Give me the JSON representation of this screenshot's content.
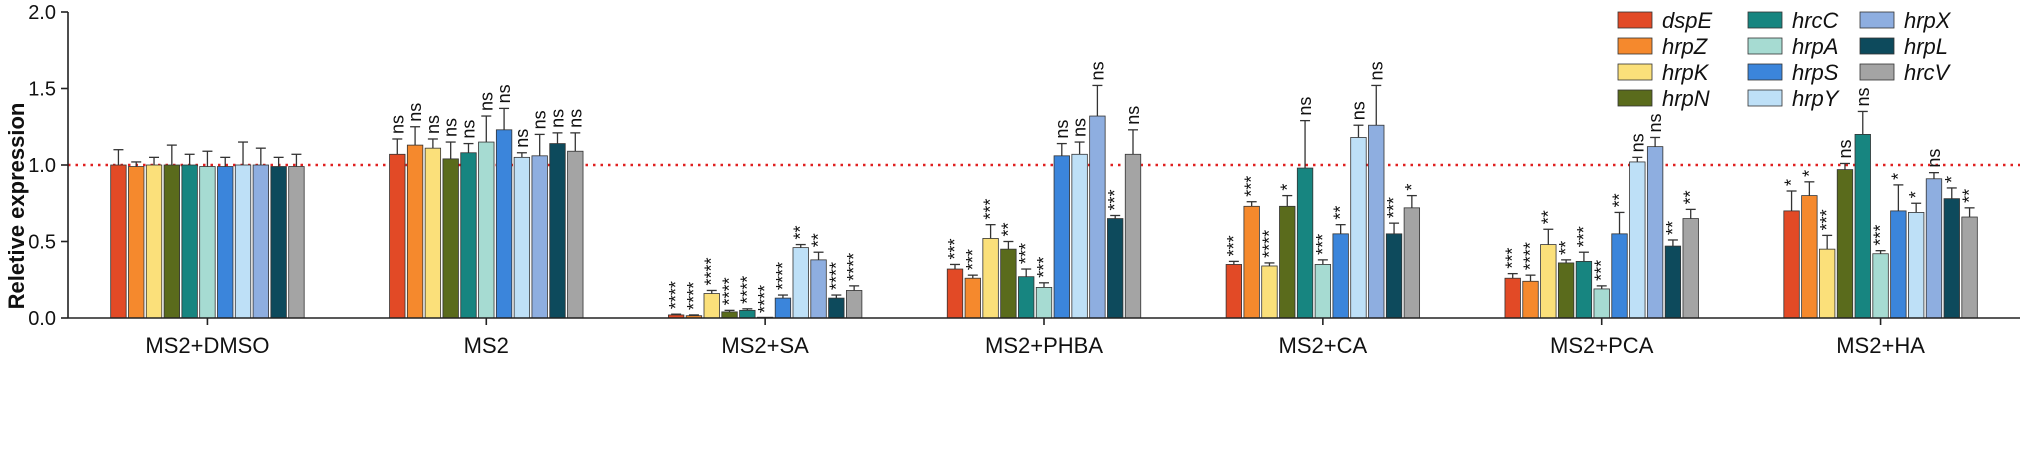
{
  "chart_data": {
    "type": "bar",
    "title": "",
    "xlabel": "",
    "ylabel": "Reletive expression",
    "ylim": [
      0,
      2.0
    ],
    "yticks": [
      "0.0",
      "0.5",
      "1.0",
      "1.5",
      "2.0"
    ],
    "reference_line": 1.0,
    "legend_position": "top-right",
    "categories": [
      "MS2+DMSO",
      "MS2",
      "MS2+SA",
      "MS2+PHBA",
      "MS2+CA",
      "MS2+PCA",
      "MS2+HA"
    ],
    "series": [
      {
        "name": "dspE",
        "color": "#e24a26",
        "values": [
          1.0,
          1.07,
          0.02,
          0.32,
          0.35,
          0.26,
          0.7
        ],
        "errors": [
          0.1,
          0.1,
          0.005,
          0.03,
          0.02,
          0.03,
          0.13
        ],
        "sig": [
          "",
          "ns",
          "****",
          "***",
          "***",
          "***",
          "*"
        ]
      },
      {
        "name": "hrpZ",
        "color": "#f5892d",
        "values": [
          0.99,
          1.13,
          0.015,
          0.26,
          0.73,
          0.24,
          0.8
        ],
        "errors": [
          0.03,
          0.12,
          0.005,
          0.02,
          0.03,
          0.04,
          0.09
        ],
        "sig": [
          "",
          "ns",
          "****",
          "***",
          "***",
          "****",
          "*"
        ]
      },
      {
        "name": "hrpK",
        "color": "#fbe07a",
        "values": [
          1.0,
          1.11,
          0.16,
          0.52,
          0.34,
          0.48,
          0.45
        ],
        "errors": [
          0.05,
          0.06,
          0.02,
          0.09,
          0.02,
          0.1,
          0.09
        ],
        "sig": [
          "",
          "ns",
          "****",
          "***",
          "****",
          "**",
          "***"
        ]
      },
      {
        "name": "hrpN",
        "color": "#5a6b1c",
        "values": [
          1.0,
          1.04,
          0.04,
          0.45,
          0.73,
          0.36,
          0.97
        ],
        "errors": [
          0.13,
          0.11,
          0.01,
          0.05,
          0.07,
          0.02,
          0.04
        ],
        "sig": [
          "",
          "ns",
          "****",
          "**",
          "*",
          "**",
          "ns"
        ]
      },
      {
        "name": "hrcC",
        "color": "#178580",
        "values": [
          1.0,
          1.08,
          0.05,
          0.27,
          0.98,
          0.37,
          1.2
        ],
        "errors": [
          0.07,
          0.06,
          0.01,
          0.05,
          0.31,
          0.06,
          0.15
        ],
        "sig": [
          "",
          "ns",
          "****",
          "***",
          "ns",
          "***",
          "ns"
        ]
      },
      {
        "name": "hrpA",
        "color": "#a6dbd2",
        "values": [
          0.99,
          1.15,
          0.0,
          0.2,
          0.35,
          0.19,
          0.42
        ],
        "errors": [
          0.1,
          0.17,
          0.0,
          0.03,
          0.03,
          0.02,
          0.02
        ],
        "sig": [
          "",
          "ns",
          "****",
          "***",
          "***",
          "***",
          "***"
        ]
      },
      {
        "name": "hrpS",
        "color": "#3b85db",
        "values": [
          0.99,
          1.23,
          0.13,
          1.06,
          0.55,
          0.55,
          0.7
        ],
        "errors": [
          0.06,
          0.14,
          0.02,
          0.08,
          0.06,
          0.14,
          0.17
        ],
        "sig": [
          "",
          "ns",
          "****",
          "ns",
          "**",
          "**",
          "*"
        ]
      },
      {
        "name": "hrpY",
        "color": "#bee0f7",
        "values": [
          1.0,
          1.05,
          0.46,
          1.07,
          1.18,
          1.02,
          0.69
        ],
        "errors": [
          0.15,
          0.03,
          0.02,
          0.08,
          0.08,
          0.03,
          0.06
        ],
        "sig": [
          "",
          "ns",
          "**",
          "ns",
          "ns",
          "ns",
          "*"
        ]
      },
      {
        "name": "hrpX",
        "color": "#8eaee0",
        "values": [
          1.0,
          1.06,
          0.38,
          1.32,
          1.26,
          1.12,
          0.91
        ],
        "errors": [
          0.11,
          0.14,
          0.05,
          0.2,
          0.26,
          0.06,
          0.04
        ],
        "sig": [
          "",
          "ns",
          "**",
          "ns",
          "ns",
          "ns",
          "ns"
        ]
      },
      {
        "name": "hrpL",
        "color": "#0d4a5c",
        "values": [
          0.99,
          1.14,
          0.13,
          0.65,
          0.55,
          0.47,
          0.78
        ],
        "errors": [
          0.06,
          0.07,
          0.02,
          0.02,
          0.07,
          0.04,
          0.07
        ],
        "sig": [
          "",
          "ns",
          "****",
          "***",
          "***",
          "**",
          "*"
        ]
      },
      {
        "name": "hrcV",
        "color": "#a4a4a4",
        "values": [
          0.99,
          1.09,
          0.18,
          1.07,
          0.72,
          0.65,
          0.66
        ],
        "errors": [
          0.08,
          0.12,
          0.03,
          0.16,
          0.08,
          0.06,
          0.06
        ],
        "sig": [
          "",
          "ns",
          "****",
          "ns",
          "*",
          "**",
          "**"
        ]
      }
    ]
  }
}
